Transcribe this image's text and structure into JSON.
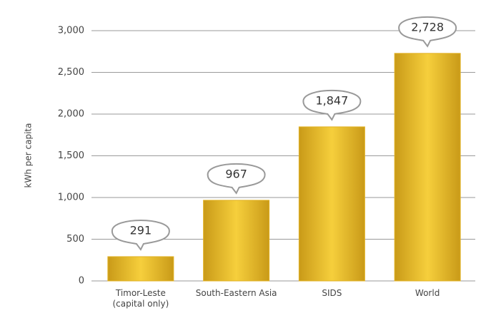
{
  "chart_data": {
    "type": "bar",
    "y_label": "kWh per capita",
    "categories": [
      "Timor-Leste\n(capital only)",
      "South-Eastern Asia",
      "SIDS",
      "World"
    ],
    "values": [
      291,
      967,
      1847,
      2728
    ],
    "value_labels": [
      "291",
      "967",
      "1,847",
      "2,728"
    ],
    "color": "#e2b225",
    "ylim": [
      0,
      3000
    ],
    "yticks": [
      0,
      500,
      {
        "value": 1000,
        "label": "1,000"
      },
      {
        "value": 1500,
        "label": "1,500"
      },
      {
        "value": 2000,
        "label": "2,000"
      },
      {
        "value": 2500,
        "label": "2,500"
      },
      {
        "value": 3000,
        "label": "3,000"
      }
    ],
    "grid": true
  }
}
